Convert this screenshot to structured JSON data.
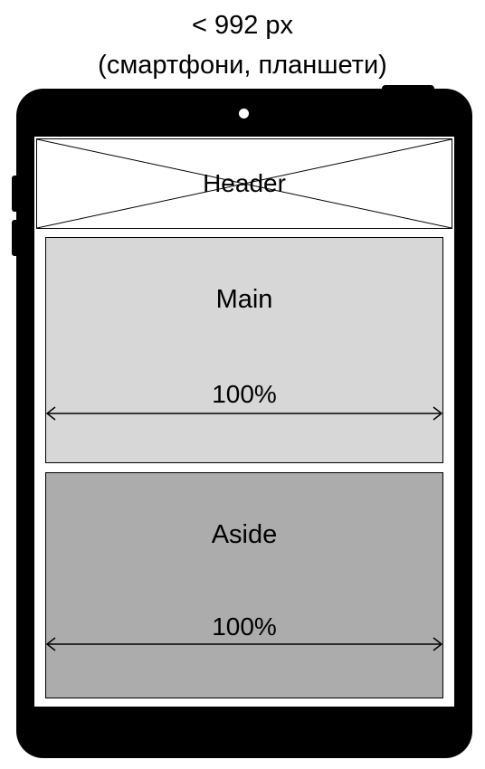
{
  "caption": {
    "line1": "< 992 px",
    "line2": "(смартфони, планшети)"
  },
  "header": {
    "label": "Header"
  },
  "main": {
    "label": "Main",
    "width": "100%"
  },
  "aside": {
    "label": "Aside",
    "width": "100%"
  },
  "colors": {
    "device": "#000000",
    "screen": "#ffffff",
    "main_fill": "#d7d7d7",
    "aside_fill": "#acacac"
  }
}
